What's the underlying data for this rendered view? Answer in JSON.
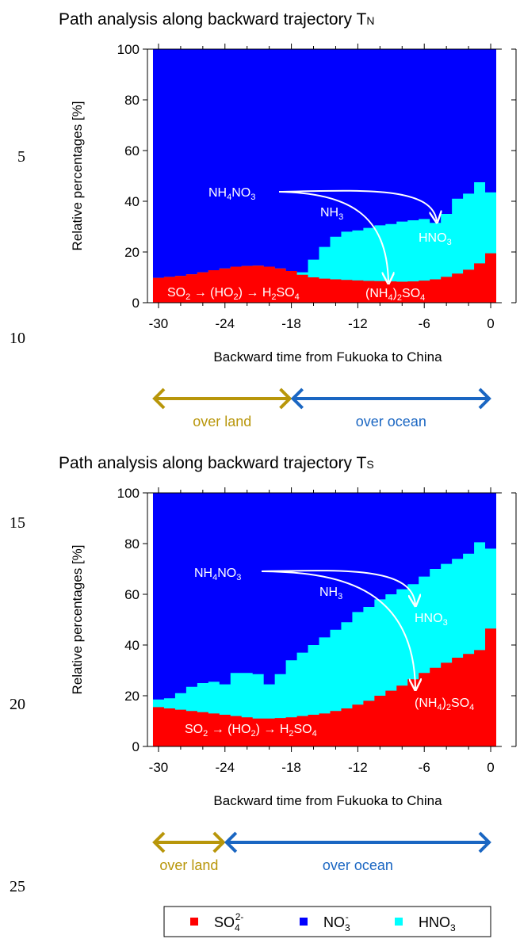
{
  "line_numbers": [
    "5",
    "10",
    "15",
    "20",
    "25"
  ],
  "chart_data": [
    {
      "type": "area",
      "title": "Path analysis along backward trajectory TN",
      "title_main": "Path analysis along backward trajectory T",
      "title_sub": "N",
      "xlabel": "Backward time from Fukuoka to China",
      "ylabel": "Relative percentages [%]",
      "xlim": [
        -31,
        1
      ],
      "ylim": [
        0,
        100
      ],
      "xticks": [
        "-30",
        "-24",
        "-18",
        "-12",
        "-6",
        "0"
      ],
      "yticks": [
        "0",
        "20",
        "40",
        "60",
        "80",
        "100"
      ],
      "x": [
        -30,
        -29,
        -28,
        -27,
        -26,
        -25,
        -24,
        -23,
        -22,
        -21,
        -20,
        -19,
        -18,
        -17,
        -16,
        -15,
        -14,
        -13,
        -12,
        -11,
        -10,
        -9,
        -8,
        -7,
        -6,
        -5,
        -4,
        -3,
        -2,
        -1,
        0
      ],
      "series": [
        {
          "name": "SO4 2-",
          "color": "#ff0000",
          "top": [
            9.8,
            10.2,
            10.6,
            11.2,
            12,
            12.8,
            13.5,
            14.2,
            14.5,
            14.6,
            14.2,
            13.5,
            12.5,
            11,
            10,
            9.5,
            9.2,
            9,
            8.8,
            8.6,
            8.5,
            8.4,
            8.3,
            8.4,
            8.7,
            9.2,
            10.2,
            11.5,
            13,
            15.5,
            19.5
          ]
        },
        {
          "name": "HNO3",
          "color": "#00ffff",
          "top": [
            9.8,
            10.2,
            10.6,
            11.2,
            12,
            12.8,
            13.5,
            14.2,
            14.5,
            14.6,
            14.2,
            13.5,
            12.5,
            12,
            17,
            22,
            26,
            28,
            28.5,
            29.5,
            30.5,
            31,
            32,
            32.5,
            33,
            31.5,
            35,
            41,
            43,
            47.5,
            43.5
          ]
        },
        {
          "name": "NO3 -",
          "color": "#0000ff",
          "top": [
            100,
            100,
            100,
            100,
            100,
            100,
            100,
            100,
            100,
            100,
            100,
            100,
            100,
            100,
            100,
            100,
            100,
            100,
            100,
            100,
            100,
            100,
            100,
            100,
            100,
            100,
            100,
            100,
            100,
            100,
            100
          ]
        }
      ],
      "annotations": {
        "nh4no3": [
          "NH",
          "4",
          "NO",
          "3"
        ],
        "nh3": [
          "NH",
          "3"
        ],
        "hno3": [
          "HNO",
          "3"
        ],
        "nh4so4": [
          "(NH",
          "4",
          ")",
          "2",
          "SO",
          "4"
        ],
        "so2": [
          "SO",
          "2",
          " → (HO",
          "2",
          ") → H",
          "2",
          "SO",
          "4"
        ]
      },
      "range_left": "over land",
      "range_right": "over ocean",
      "land_color": "#b8960a",
      "ocean_color": "#1a66c2"
    },
    {
      "type": "area",
      "title": "Path analysis along backward trajectory TS",
      "title_main": "Path analysis along backward trajectory T",
      "title_sub": "S",
      "xlabel": "Backward time from Fukuoka to China",
      "ylabel": "Relative percentages [%]",
      "xlim": [
        -31,
        1
      ],
      "ylim": [
        0,
        100
      ],
      "xticks": [
        "-30",
        "-24",
        "-18",
        "-12",
        "-6",
        "0"
      ],
      "yticks": [
        "0",
        "20",
        "40",
        "60",
        "80",
        "100"
      ],
      "x": [
        -30,
        -29,
        -28,
        -27,
        -26,
        -25,
        -24,
        -23,
        -22,
        -21,
        -20,
        -19,
        -18,
        -17,
        -16,
        -15,
        -14,
        -13,
        -12,
        -11,
        -10,
        -9,
        -8,
        -7,
        -6,
        -5,
        -4,
        -3,
        -2,
        -1,
        0
      ],
      "series": [
        {
          "name": "SO4 2-",
          "color": "#ff0000",
          "top": [
            15.5,
            15,
            14.5,
            14,
            13.5,
            13,
            12.5,
            12,
            11.5,
            11,
            11,
            11.2,
            11.5,
            12,
            12.5,
            13,
            14,
            15,
            16.5,
            18,
            20,
            22,
            24,
            26.5,
            29,
            31,
            33,
            35,
            36.5,
            38,
            46.5
          ]
        },
        {
          "name": "HNO3",
          "color": "#00ffff",
          "top": [
            18.5,
            19,
            21,
            23.5,
            25,
            25.5,
            24.5,
            29,
            29,
            28.5,
            24.5,
            28.5,
            34,
            37,
            40,
            43,
            46,
            49,
            53,
            55,
            58,
            60,
            62,
            64,
            67,
            70,
            72,
            74,
            76,
            80.5,
            78
          ]
        },
        {
          "name": "NO3 -",
          "color": "#0000ff",
          "top": [
            100,
            100,
            100,
            100,
            100,
            100,
            100,
            100,
            100,
            100,
            100,
            100,
            100,
            100,
            100,
            100,
            100,
            100,
            100,
            100,
            100,
            100,
            100,
            100,
            100,
            100,
            100,
            100,
            100,
            100,
            100
          ]
        }
      ],
      "annotations": {
        "nh4no3": [
          "NH",
          "4",
          "NO",
          "3"
        ],
        "nh3": [
          "NH",
          "3"
        ],
        "hno3": [
          "HNO",
          "3"
        ],
        "nh4so4": [
          "(NH",
          "4",
          ")",
          "2",
          "SO",
          "4"
        ],
        "so2": [
          "SO",
          "2",
          " → (HO",
          "2",
          ") → H",
          "2",
          "SO",
          "4"
        ]
      },
      "range_left": "over land",
      "range_right": "over ocean",
      "land_color": "#b8960a",
      "ocean_color": "#1a66c2"
    }
  ],
  "legend": {
    "items": [
      {
        "main": "SO",
        "sub": "4",
        "sup": "2-",
        "color": "#ff0000"
      },
      {
        "main": "NO",
        "sub": "3",
        "sup": "-",
        "color": "#0000ff"
      },
      {
        "main": "HNO",
        "sub": "3",
        "sup": "",
        "color": "#00ffff"
      }
    ]
  }
}
